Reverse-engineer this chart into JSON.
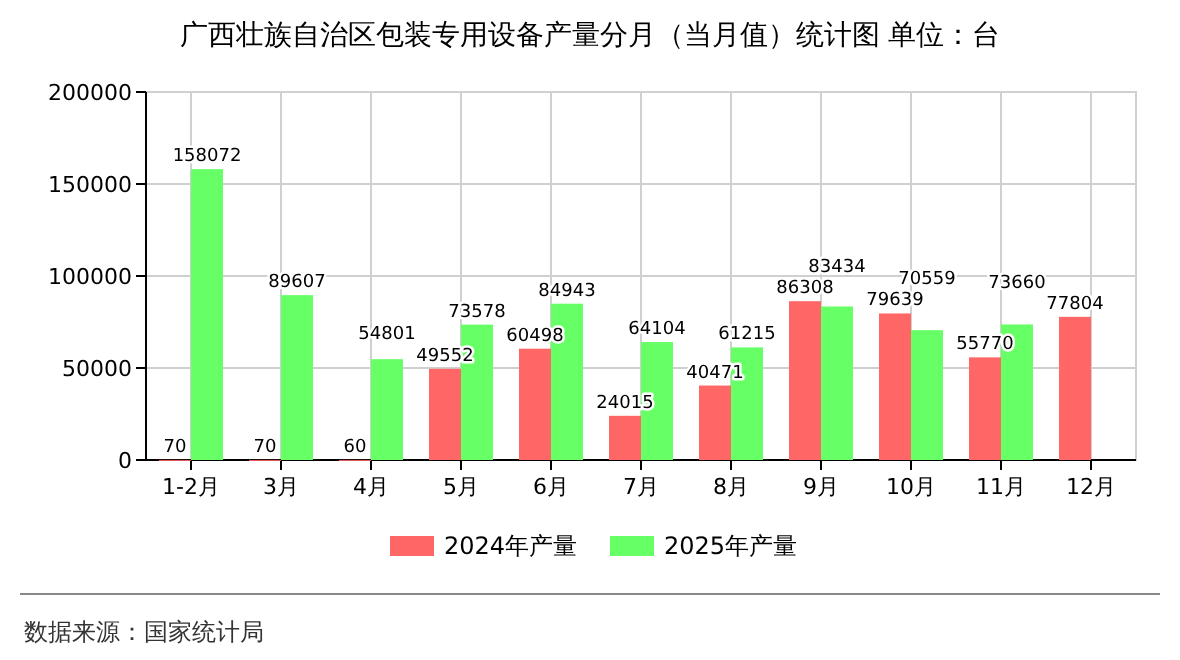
{
  "chart_data": {
    "type": "bar",
    "title": "广西壮族自治区包装专用设备产量分月（当月值）统计图 单位：台",
    "categories": [
      "1-2月",
      "3月",
      "4月",
      "5月",
      "6月",
      "7月",
      "8月",
      "9月",
      "10月",
      "11月",
      "12月"
    ],
    "series": [
      {
        "name": "2024年产量",
        "color": "#ff6666",
        "values": [
          70,
          70,
          60,
          49552,
          60498,
          24015,
          40471,
          86308,
          79639,
          55770,
          77804
        ]
      },
      {
        "name": "2025年产量",
        "color": "#66ff66",
        "values": [
          158072,
          89607,
          54801,
          73578,
          84943,
          64104,
          61215,
          83434,
          70559,
          73660,
          null
        ]
      }
    ],
    "ylim": [
      0,
      200000
    ],
    "yticks": [
      0,
      50000,
      100000,
      150000,
      200000
    ],
    "grid": true,
    "legend": "bottom",
    "data_labels": true,
    "annotations": [
      "数据来源：国家统计局"
    ]
  }
}
